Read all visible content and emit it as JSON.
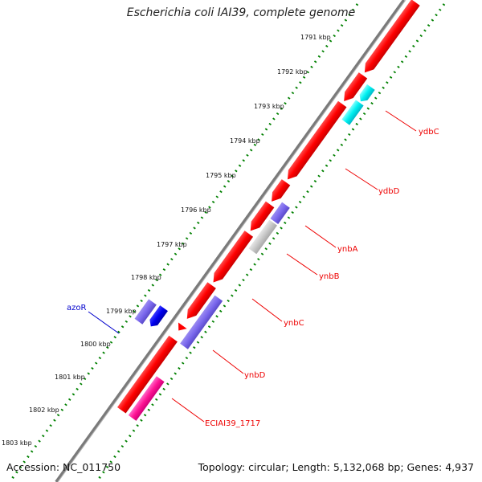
{
  "title": "Escherichia coli IAI39, complete genome",
  "footer": {
    "accession": "Accession: NC_011750",
    "topology": "Topology: circular; Length: 5,132,068 bp; Genes: 4,937"
  },
  "kbp_labels": [
    "1791 kbp",
    "1792 kbp",
    "1793 kbp",
    "1794 kbp",
    "1795 kbp",
    "1796 kbp",
    "1797 kbp",
    "1798 kbp",
    "1799 kbp",
    "1800 kbp",
    "1801 kbp",
    "1802 kbp",
    "1803 kbp"
  ],
  "genes": [
    {
      "name": "",
      "strand": "outer",
      "kind": "cds",
      "color": "#ff0000"
    },
    {
      "name": "ydbC",
      "strand": "inner",
      "kind": "cds",
      "color": "#00ffff"
    },
    {
      "name": "ydbD",
      "strand": "outer",
      "kind": "cds",
      "color": "#ff0000"
    },
    {
      "name": "ynbA",
      "strand": "inner",
      "kind": "cds",
      "color": "#7b68ee"
    },
    {
      "name": "ynbB",
      "strand": "inner",
      "kind": "cds",
      "color": "#c0c0c0"
    },
    {
      "name": "ynbC",
      "strand": "outer",
      "kind": "cds",
      "color": "#ff0000"
    },
    {
      "name": "ynbD",
      "strand": "inner",
      "kind": "cds",
      "color": "#7b68ee"
    },
    {
      "name": "azoR",
      "strand": "minus",
      "kind": "cds",
      "color": "#0000ee"
    },
    {
      "name": "ECIAI39_1717",
      "strand": "outer",
      "kind": "cds",
      "color": "#ff0000"
    }
  ],
  "colors": {
    "tick_dots": "#008000",
    "backbone": "#808080",
    "label_red": "#ee0000",
    "label_blue": "#0000cc"
  }
}
